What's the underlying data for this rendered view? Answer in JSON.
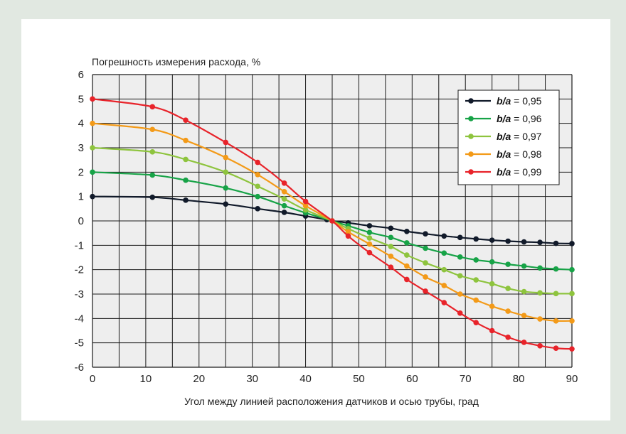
{
  "colors": {
    "page_background": "#e1e8e1",
    "card_background": "#ffffff",
    "plot_background": "#eeeeee",
    "grid": "#1a1a1a"
  },
  "chart_data": {
    "type": "line",
    "title": "",
    "ylabel": "Погрешность измерения расхода, %",
    "xlabel": "Угол между линией расположения датчиков и осью трубы, град",
    "xlim": [
      0,
      90
    ],
    "ylim": [
      -6,
      6
    ],
    "x_ticks": [
      "0",
      "10",
      "20",
      "30",
      "40",
      "50",
      "60",
      "70",
      "80",
      "90"
    ],
    "y_ticks": [
      "6",
      "5",
      "4",
      "3",
      "2",
      "1",
      "0",
      "-1",
      "-2",
      "-3",
      "-4",
      "-5",
      "-6"
    ],
    "grid": true,
    "legend_position": "top-right",
    "series": [
      {
        "name": "b/a = 0,95",
        "legend_key": "b/a",
        "legend_value": " = 0,95",
        "color": "#111a2a",
        "points": [
          [
            0,
            1.0
          ],
          [
            11.25,
            0.97
          ],
          [
            17.5,
            0.85
          ],
          [
            25,
            0.69
          ],
          [
            31,
            0.5
          ],
          [
            36,
            0.35
          ],
          [
            40,
            0.2
          ],
          [
            44,
            0.05
          ],
          [
            45,
            0
          ],
          [
            48,
            -0.08
          ],
          [
            52,
            -0.2
          ],
          [
            56,
            -0.3
          ],
          [
            59,
            -0.43
          ],
          [
            62.5,
            -0.53
          ],
          [
            66,
            -0.62
          ],
          [
            69,
            -0.68
          ],
          [
            72,
            -0.74
          ],
          [
            75,
            -0.79
          ],
          [
            78,
            -0.83
          ],
          [
            81,
            -0.86
          ],
          [
            84,
            -0.88
          ],
          [
            87,
            -0.92
          ],
          [
            90,
            -0.93
          ]
        ]
      },
      {
        "name": "b/a = 0,96",
        "legend_key": "b/a",
        "legend_value": " = 0,96",
        "color": "#17a347",
        "points": [
          [
            0,
            2.0
          ],
          [
            11.25,
            1.88
          ],
          [
            17.5,
            1.67
          ],
          [
            25,
            1.35
          ],
          [
            31,
            1.0
          ],
          [
            36,
            0.62
          ],
          [
            40,
            0.33
          ],
          [
            45,
            0
          ],
          [
            48,
            -0.2
          ],
          [
            52,
            -0.47
          ],
          [
            56,
            -0.68
          ],
          [
            59,
            -0.9
          ],
          [
            62.5,
            -1.12
          ],
          [
            66,
            -1.32
          ],
          [
            69,
            -1.48
          ],
          [
            72,
            -1.6
          ],
          [
            75,
            -1.68
          ],
          [
            78,
            -1.78
          ],
          [
            81,
            -1.85
          ],
          [
            84,
            -1.93
          ],
          [
            87,
            -1.97
          ],
          [
            90,
            -2.0
          ]
        ]
      },
      {
        "name": "b/a = 0,97",
        "legend_key": "b/a",
        "legend_value": " = 0,97",
        "color": "#8ec43e",
        "points": [
          [
            0,
            3.0
          ],
          [
            11.25,
            2.83
          ],
          [
            17.5,
            2.52
          ],
          [
            25,
            2.0
          ],
          [
            31,
            1.42
          ],
          [
            36,
            0.9
          ],
          [
            40,
            0.45
          ],
          [
            45,
            0
          ],
          [
            48,
            -0.32
          ],
          [
            52,
            -0.7
          ],
          [
            56,
            -1.05
          ],
          [
            59,
            -1.4
          ],
          [
            62.5,
            -1.72
          ],
          [
            66,
            -2.0
          ],
          [
            69,
            -2.25
          ],
          [
            72,
            -2.42
          ],
          [
            75,
            -2.58
          ],
          [
            78,
            -2.77
          ],
          [
            81,
            -2.9
          ],
          [
            84,
            -2.95
          ],
          [
            87,
            -2.98
          ],
          [
            90,
            -2.98
          ]
        ]
      },
      {
        "name": "b/a = 0,98",
        "legend_key": "b/a",
        "legend_value": " = 0,98",
        "color": "#f39a18",
        "points": [
          [
            0,
            4.0
          ],
          [
            11.25,
            3.75
          ],
          [
            17.5,
            3.3
          ],
          [
            25,
            2.6
          ],
          [
            31,
            1.9
          ],
          [
            36,
            1.2
          ],
          [
            40,
            0.62
          ],
          [
            45,
            0
          ],
          [
            48,
            -0.45
          ],
          [
            52,
            -0.95
          ],
          [
            56,
            -1.45
          ],
          [
            59,
            -1.85
          ],
          [
            62.5,
            -2.3
          ],
          [
            66,
            -2.65
          ],
          [
            69,
            -3.0
          ],
          [
            72,
            -3.25
          ],
          [
            75,
            -3.5
          ],
          [
            78,
            -3.7
          ],
          [
            81,
            -3.88
          ],
          [
            84,
            -4.02
          ],
          [
            87,
            -4.1
          ],
          [
            90,
            -4.1
          ]
        ]
      },
      {
        "name": "b/a = 0,99",
        "legend_key": "b/a",
        "legend_value": " = 0,99",
        "color": "#e8232a",
        "points": [
          [
            0,
            5.0
          ],
          [
            11.25,
            4.68
          ],
          [
            17.5,
            4.13
          ],
          [
            25,
            3.22
          ],
          [
            31,
            2.4
          ],
          [
            36,
            1.55
          ],
          [
            40,
            0.8
          ],
          [
            45,
            0
          ],
          [
            48,
            -0.62
          ],
          [
            52,
            -1.3
          ],
          [
            56,
            -1.9
          ],
          [
            59,
            -2.4
          ],
          [
            62.5,
            -2.88
          ],
          [
            66,
            -3.35
          ],
          [
            69,
            -3.78
          ],
          [
            72,
            -4.17
          ],
          [
            75,
            -4.5
          ],
          [
            78,
            -4.77
          ],
          [
            81,
            -4.98
          ],
          [
            84,
            -5.12
          ],
          [
            87,
            -5.22
          ],
          [
            90,
            -5.25
          ]
        ]
      }
    ]
  }
}
